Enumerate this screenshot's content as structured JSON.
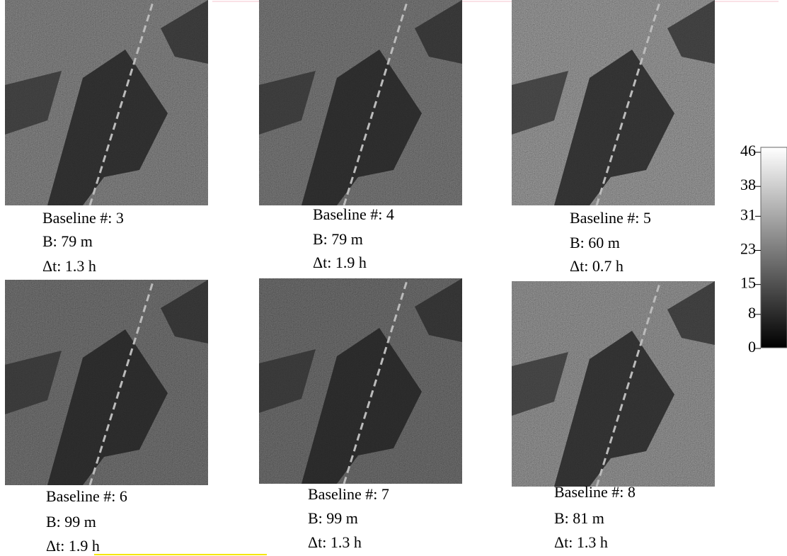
{
  "panels": [
    {
      "baseline": "Baseline #:  3",
      "b": "B: 79 m",
      "dt": "Δt: 1.3 h"
    },
    {
      "baseline": "Baseline #:  4",
      "b": "B: 79 m",
      "dt": "Δt: 1.9 h"
    },
    {
      "baseline": "Baseline #: 5",
      "b": "B: 60 m",
      "dt": "Δt: 0.7 h"
    },
    {
      "baseline": "Baseline #:  6",
      "b": "B: 99 m",
      "dt": "Δt: 1.9 h"
    },
    {
      "baseline": "Baseline #:  7",
      "b": "B: 99 m",
      "dt": "Δt: 1.3 h"
    },
    {
      "baseline": "Baseline #:  8",
      "b": "B: 81 m",
      "dt": "Δt: 1.3 h"
    }
  ],
  "colorbar": {
    "lim": [
      0,
      46
    ],
    "ticks": [
      46,
      38,
      31,
      23,
      15,
      8,
      0
    ]
  }
}
